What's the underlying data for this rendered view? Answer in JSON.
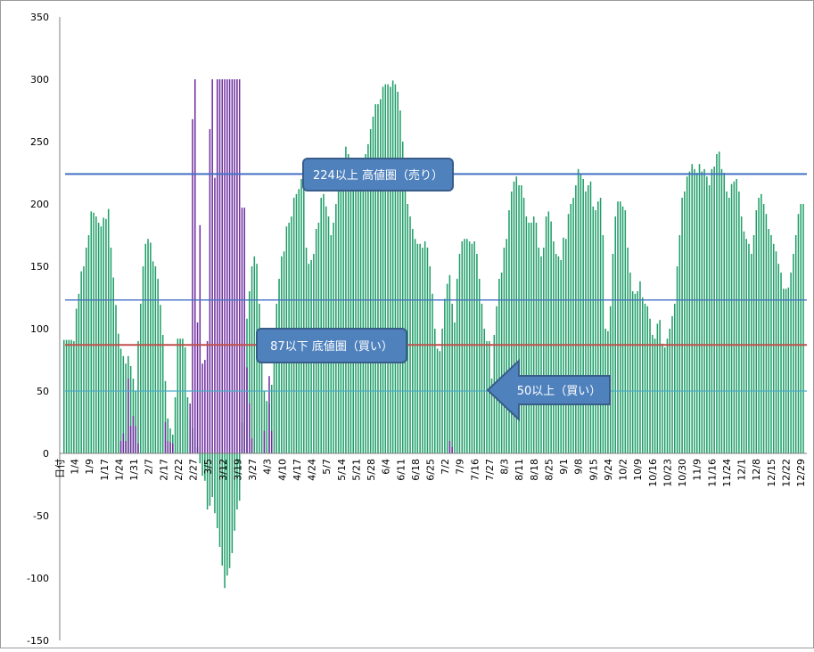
{
  "chart_data": {
    "type": "bar",
    "xlabel": "",
    "ylabel": "",
    "ylim": [
      -150,
      350
    ],
    "y_ticks": [
      "350",
      "300",
      "250",
      "200",
      "150",
      "100",
      "50",
      "0",
      "-50",
      "-100",
      "-150"
    ],
    "x_ticks": [
      "日付",
      "1/4",
      "1/9",
      "1/17",
      "1/24",
      "1/31",
      "2/7",
      "2/17",
      "2/22",
      "2/27",
      "3/5",
      "3/12",
      "3/19",
      "3/27",
      "4/3",
      "4/10",
      "4/17",
      "4/24",
      "5/7",
      "5/14",
      "5/21",
      "5/28",
      "6/4",
      "6/11",
      "6/18",
      "6/25",
      "7/2",
      "7/9",
      "7/16",
      "7/27",
      "8/3",
      "8/11",
      "8/18",
      "8/25",
      "9/1",
      "9/8",
      "9/15",
      "9/24",
      "10/2",
      "10/9",
      "10/16",
      "10/23",
      "10/30",
      "11/9",
      "11/16",
      "11/24",
      "12/1",
      "12/8",
      "12/15",
      "12/22",
      "12/29"
    ],
    "grid": false,
    "series": [
      {
        "name": "",
        "color": "#1f9e68",
        "values": [
          91,
          91,
          91,
          91,
          90,
          116,
          128,
          146,
          150,
          165,
          175,
          194,
          193,
          190,
          185,
          182,
          189,
          188,
          196,
          165,
          141,
          119,
          96,
          84,
          78,
          72,
          78,
          70,
          60,
          50,
          90,
          120,
          150,
          168,
          172,
          169,
          154,
          150,
          140,
          119,
          95,
          58,
          28,
          20,
          15,
          45,
          92,
          92,
          92,
          85,
          45,
          28,
          20,
          12,
          5,
          -8,
          -18,
          -22,
          -45,
          -42,
          -35,
          -48,
          -60,
          -75,
          -90,
          -108,
          -98,
          -92,
          -80,
          -62,
          -45,
          -38,
          25,
          70,
          108,
          130,
          150,
          158,
          152,
          120,
          90,
          50,
          42,
          40,
          55,
          95,
          120,
          140,
          158,
          162,
          182,
          185,
          190,
          205,
          208,
          212,
          220,
          216,
          165,
          152,
          155,
          160,
          180,
          185,
          205,
          208,
          198,
          190,
          175,
          185,
          200,
          215,
          225,
          236,
          246,
          240,
          232,
          225,
          222,
          226,
          230,
          236,
          240,
          248,
          260,
          270,
          280,
          280,
          284,
          294,
          296,
          296,
          294,
          299,
          296,
          290,
          275,
          250,
          220,
          200,
          190,
          180,
          172,
          168,
          168,
          165,
          170,
          165,
          150,
          128,
          100,
          84,
          82,
          100,
          124,
          136,
          143,
          120,
          105,
          140,
          160,
          170,
          172,
          172,
          170,
          168,
          170,
          160,
          140,
          120,
          100,
          90,
          90,
          60,
          95,
          118,
          140,
          145,
          165,
          172,
          195,
          210,
          218,
          222,
          215,
          215,
          205,
          190,
          185,
          185,
          190,
          185,
          165,
          158,
          165,
          190,
          194,
          186,
          170,
          160,
          158,
          155,
          173,
          172,
          192,
          200,
          205,
          215,
          228,
          224,
          220,
          210,
          215,
          218,
          198,
          195,
          202,
          205,
          175,
          100,
          98,
          118,
          160,
          190,
          202,
          202,
          198,
          195,
          165,
          145,
          130,
          128,
          130,
          138,
          125,
          120,
          118,
          108,
          95,
          92,
          104,
          107,
          88,
          85,
          92,
          100,
          110,
          120,
          150,
          175,
          205,
          210,
          222,
          226,
          232,
          228,
          225,
          232,
          226,
          228,
          222,
          215,
          228,
          230,
          240,
          242,
          228,
          225,
          210,
          205,
          216,
          218,
          220,
          210,
          190,
          178,
          172,
          168,
          160,
          175,
          195,
          205,
          208,
          200,
          192,
          180,
          175,
          168,
          162,
          152,
          145,
          132,
          132,
          133,
          145,
          160,
          175,
          192,
          200,
          200
        ]
      },
      {
        "name": "",
        "color": "#7030a0",
        "values": [
          0,
          0,
          0,
          0,
          0,
          0,
          0,
          0,
          0,
          0,
          0,
          0,
          0,
          0,
          0,
          0,
          0,
          0,
          0,
          0,
          0,
          0,
          0,
          10,
          16,
          10,
          60,
          22,
          30,
          22,
          8,
          0,
          0,
          0,
          0,
          0,
          0,
          0,
          0,
          0,
          0,
          25,
          10,
          9,
          8,
          0,
          0,
          0,
          0,
          0,
          0,
          40,
          268,
          300,
          105,
          183,
          72,
          75,
          90,
          260,
          300,
          221,
          300,
          300,
          300,
          300,
          300,
          300,
          300,
          300,
          300,
          300,
          197,
          197,
          69,
          40,
          12,
          0,
          0,
          0,
          0,
          18,
          0,
          62,
          18,
          0,
          0,
          0,
          0,
          0,
          0,
          0,
          0,
          0,
          0,
          0,
          0,
          0,
          0,
          0,
          0,
          0,
          0,
          0,
          0,
          0,
          0,
          0,
          0,
          0,
          0,
          0,
          0,
          0,
          0,
          0,
          0,
          0,
          0,
          0,
          0,
          0,
          0,
          0,
          0,
          0,
          0,
          0,
          0,
          0,
          0,
          0,
          0,
          0,
          0,
          0,
          0,
          0,
          0,
          0,
          0,
          0,
          0,
          0,
          0,
          0,
          0,
          0,
          0,
          0,
          0,
          0,
          0,
          0,
          0,
          0,
          10,
          5,
          0,
          0,
          0,
          0,
          0,
          0,
          0,
          0,
          0,
          0,
          0,
          0,
          0,
          0,
          0,
          0,
          0,
          0,
          0,
          0,
          0,
          0,
          0,
          0,
          0,
          0,
          0,
          0,
          0,
          0,
          0,
          0,
          0,
          0,
          0,
          0,
          0,
          0,
          0,
          0,
          0,
          0,
          0,
          0,
          0,
          0,
          0,
          0,
          0,
          0,
          0,
          0,
          0,
          0,
          0,
          0,
          0,
          0,
          0,
          0,
          0,
          0,
          0,
          0,
          0,
          0,
          0,
          0,
          0,
          0,
          0,
          0,
          0,
          0,
          0,
          0,
          0,
          0,
          0,
          0,
          0,
          0,
          0,
          0,
          0,
          0,
          0,
          0,
          0,
          0,
          0,
          0,
          0,
          0,
          0,
          0,
          0,
          0,
          0,
          0,
          0,
          0,
          0,
          0,
          0,
          0,
          0,
          0,
          0,
          0,
          0,
          0,
          0,
          0,
          0,
          0,
          0,
          0,
          0,
          0,
          0,
          0,
          0,
          0,
          0,
          0,
          0,
          0,
          0,
          0,
          0,
          0,
          0,
          0,
          0,
          0,
          0,
          0,
          0,
          0,
          0,
          0,
          0,
          0,
          0,
          0,
          0,
          0,
          0,
          0,
          0,
          0,
          0,
          0,
          0,
          0,
          0,
          0,
          0,
          0,
          0,
          0,
          0
        ]
      }
    ],
    "reference_lines": [
      {
        "value": 224,
        "color": "#4472c4"
      },
      {
        "value": 123,
        "color": "#4472c4"
      },
      {
        "value": 87,
        "color": "#c0504d"
      },
      {
        "value": 50,
        "color": "#4bacc6"
      }
    ],
    "annotations": [
      {
        "text": "224以上  高値圏（売り）",
        "type": "callout"
      },
      {
        "text": "87以下  底値圏（買い）",
        "type": "callout"
      },
      {
        "text": "50以上（買い）",
        "type": "arrow-left"
      }
    ]
  }
}
